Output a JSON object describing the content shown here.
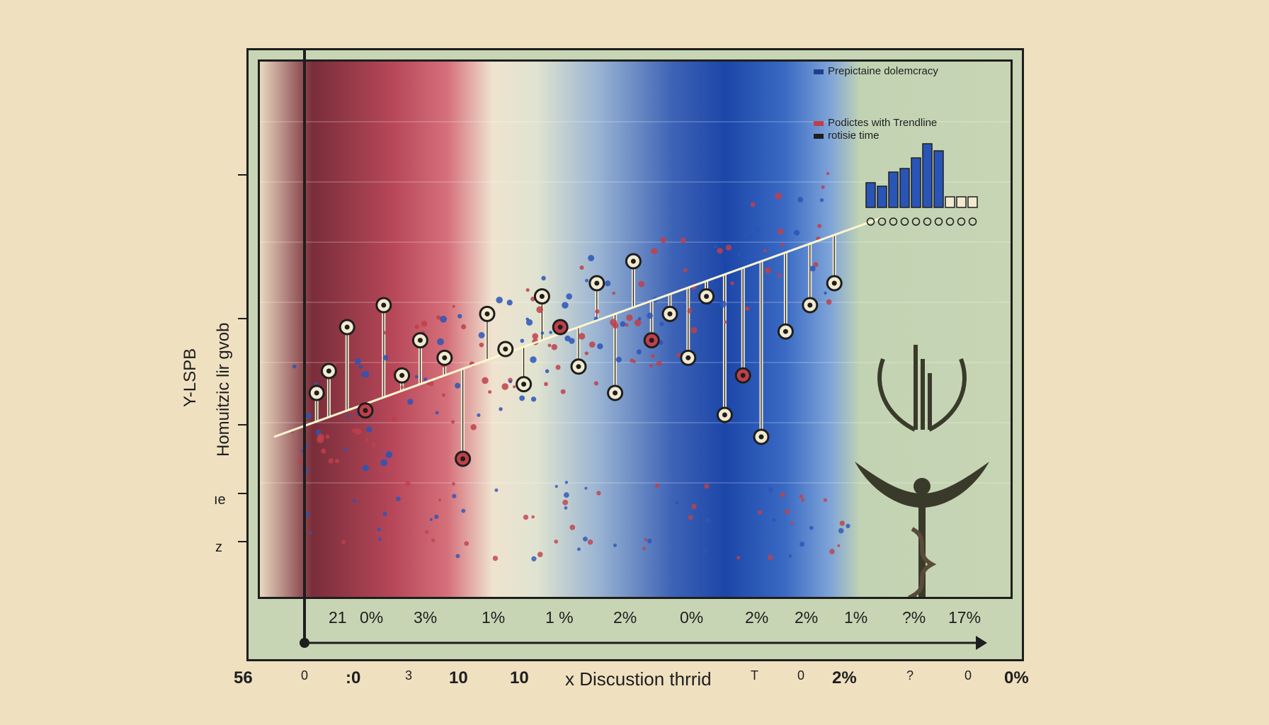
{
  "chart_data": {
    "type": "scatter",
    "legend": {
      "placement": "top-right",
      "entries": [
        {
          "label": "Prepictaine dolemcracy",
          "color": "#1f3f8f"
        },
        {
          "label": "Podictes with Trendline",
          "color": "#c0404a"
        },
        {
          "label": "rotisie time",
          "color": "#1e1e1e"
        }
      ]
    },
    "ylabel_lines": [
      "Y-LSPB",
      "Homuitzic lir gvob"
    ],
    "y_side_labels": [
      "ıe",
      "z"
    ],
    "x_tick_labels": [
      "21",
      "0%",
      "3%",
      "1%",
      "1 %",
      "2%",
      "0%",
      "2%",
      "2%",
      "1%",
      "?%",
      "17%"
    ],
    "x_outer_labels": [
      "56",
      "0",
      ":0",
      "3",
      "10",
      "10",
      "x Discustion thrrid",
      "T",
      "0",
      "2%",
      "?",
      "0",
      "0%"
    ],
    "trendline": {
      "from": [
        0,
        30
      ],
      "to": [
        100,
        80
      ]
    },
    "points": [
      [
        7,
        40
      ],
      [
        9,
        45
      ],
      [
        12,
        55
      ],
      [
        15,
        36
      ],
      [
        18,
        60
      ],
      [
        21,
        44
      ],
      [
        24,
        52
      ],
      [
        28,
        48
      ],
      [
        31,
        25
      ],
      [
        35,
        58
      ],
      [
        38,
        50
      ],
      [
        41,
        42
      ],
      [
        44,
        62
      ],
      [
        47,
        55
      ],
      [
        50,
        46
      ],
      [
        53,
        65
      ],
      [
        56,
        40
      ],
      [
        59,
        70
      ],
      [
        62,
        52
      ],
      [
        65,
        58
      ],
      [
        68,
        48
      ],
      [
        71,
        62
      ],
      [
        74,
        35
      ],
      [
        77,
        44
      ],
      [
        80,
        30
      ],
      [
        84,
        54
      ],
      [
        88,
        60
      ],
      [
        92,
        65
      ]
    ],
    "inset_bar_values": [
      35,
      30,
      50,
      55,
      70,
      90,
      80,
      15,
      15,
      15
    ],
    "grid": true,
    "colors": {
      "red": "#c0404a",
      "blue": "#2a55b8",
      "cream": "#f2ead0",
      "ink": "#1e1e1e"
    }
  }
}
